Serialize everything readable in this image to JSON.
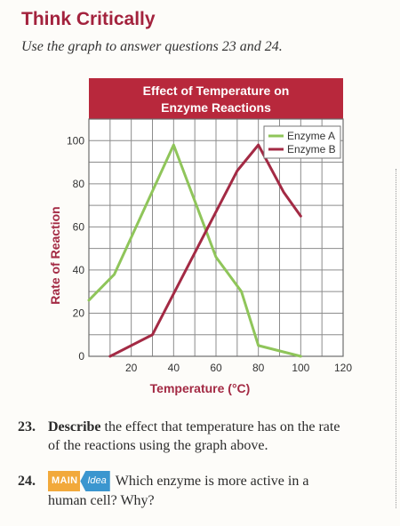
{
  "section": {
    "heading": "Think Critically",
    "intro": "Use the graph to answer questions 23 and 24."
  },
  "colors": {
    "heading": "#a3223d",
    "enzyme_a": "#8fc55a",
    "enzyme_b": "#a32a44",
    "title_band": "#b8283c"
  },
  "chart_data": {
    "type": "line",
    "title": "Effect of Temperature on Enzyme Reactions",
    "title_lines": [
      "Effect of Temperature on",
      "Enzyme Reactions"
    ],
    "xlabel": "Temperature (°C)",
    "ylabel": "Rate of Reaction",
    "xlim": [
      0,
      120
    ],
    "ylim": [
      0,
      100
    ],
    "x_ticks": [
      20,
      40,
      60,
      80,
      100,
      120
    ],
    "y_ticks": [
      0,
      20,
      40,
      60,
      80,
      100
    ],
    "grid": true,
    "legend_position": "top-right",
    "series": [
      {
        "name": "Enzyme A",
        "color": "#8fc55a",
        "points": [
          [
            0,
            26
          ],
          [
            12,
            38
          ],
          [
            40,
            98
          ],
          [
            60,
            46
          ],
          [
            72,
            30
          ],
          [
            80,
            5
          ],
          [
            100,
            0
          ]
        ]
      },
      {
        "name": "Enzyme B",
        "color": "#a32a44",
        "points": [
          [
            10,
            0
          ],
          [
            30,
            10
          ],
          [
            70,
            86
          ],
          [
            80,
            98
          ],
          [
            92,
            76
          ],
          [
            100,
            65
          ]
        ]
      }
    ]
  },
  "questions": [
    {
      "number": "23.",
      "keyword": "Describe",
      "text": "the effect that temperature has on the rate",
      "continuation": "of the reactions using the graph above."
    },
    {
      "number": "24.",
      "badge_main": "MAIN",
      "badge_idea": "Idea",
      "text": "Which enzyme is more active in a",
      "continuation": "human cell? Why?"
    }
  ]
}
